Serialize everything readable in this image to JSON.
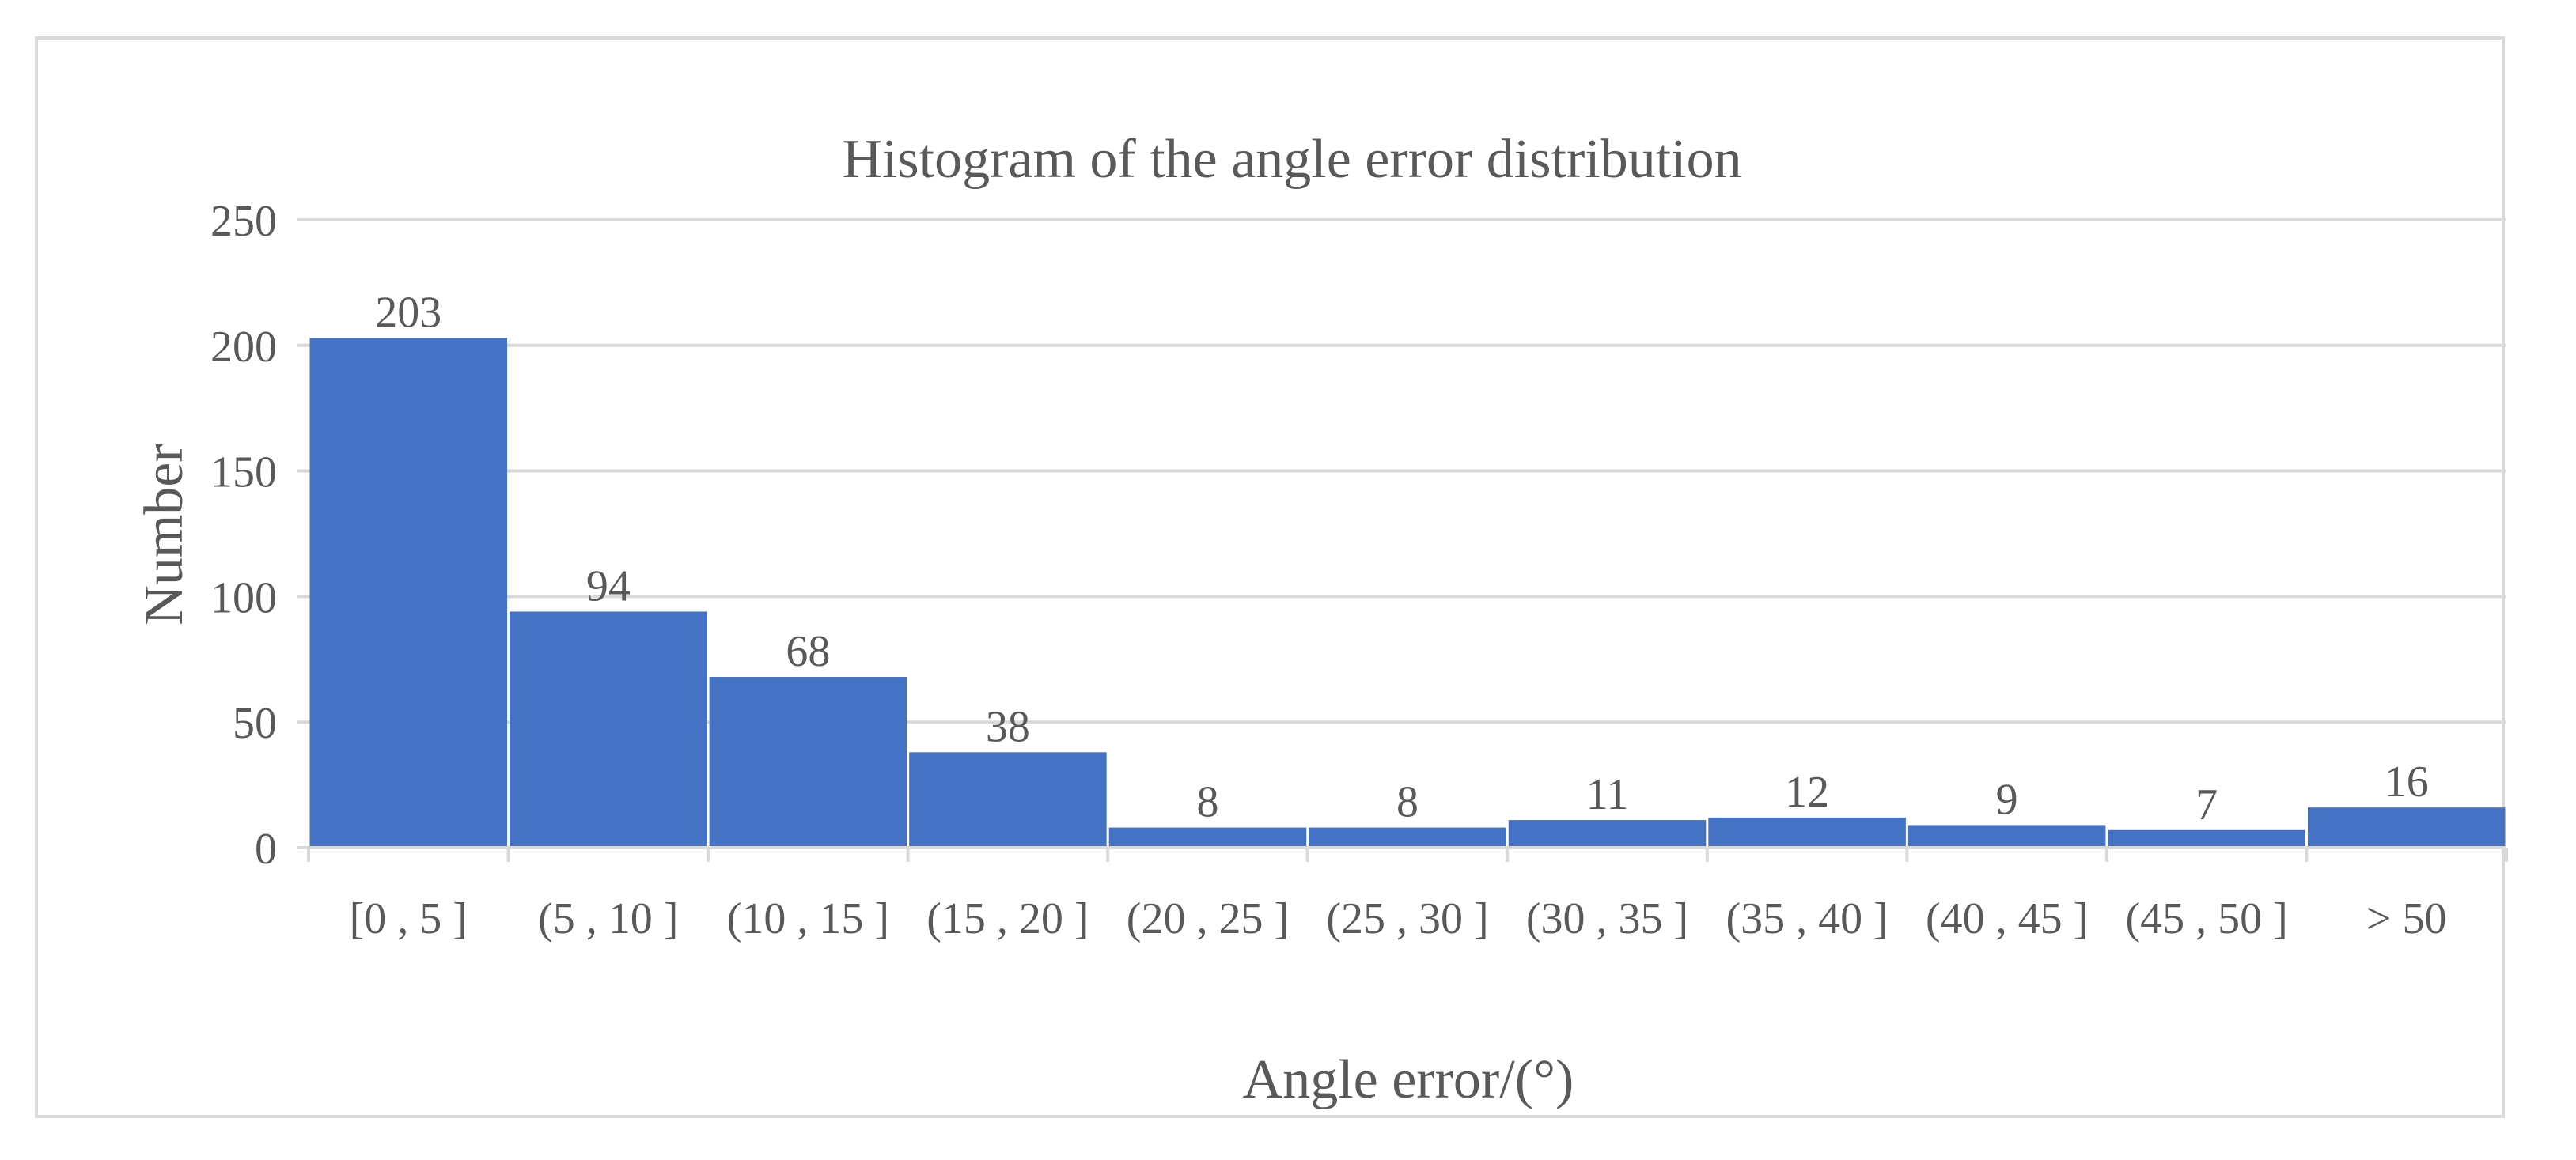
{
  "chart_data": {
    "type": "bar",
    "title": "Histogram of the angle error distribution",
    "xlabel": "Angle error/(°)",
    "ylabel": "Number",
    "categories": [
      "[0 , 5 ]",
      "(5 , 10 ]",
      "(10 , 15 ]",
      "(15 , 20 ]",
      "(20 , 25 ]",
      "(25 , 30 ]",
      "(30 , 35 ]",
      "(35 , 40 ]",
      "(40 , 45 ]",
      "(45 , 50 ]",
      "> 50"
    ],
    "values": [
      203,
      94,
      68,
      38,
      8,
      8,
      11,
      12,
      9,
      7,
      16
    ],
    "ylim": [
      0,
      250
    ],
    "yticks": [
      0,
      50,
      100,
      150,
      200,
      250
    ],
    "grid": true,
    "bar_color": "#4472c4",
    "gridline_color": "#d9d9d9",
    "text_color": "#595959"
  }
}
